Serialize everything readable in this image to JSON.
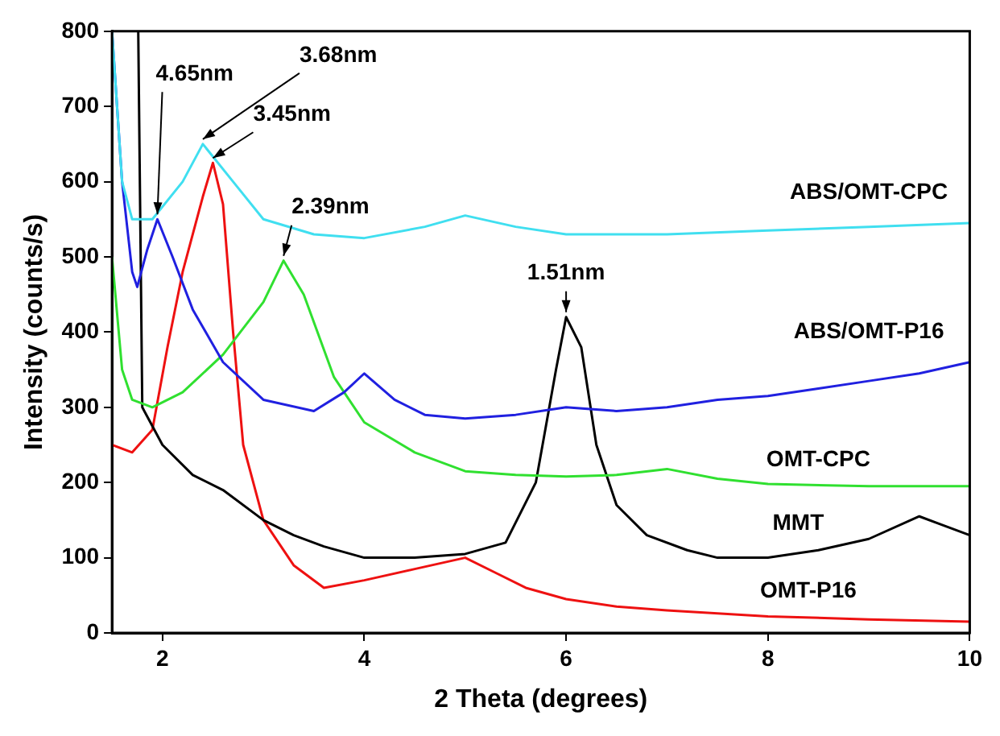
{
  "chart_data": {
    "type": "line",
    "xlabel": "2 Theta (degrees)",
    "ylabel": "Intensity (counts/s)",
    "xlim": [
      1.5,
      10
    ],
    "ylim": [
      0,
      800
    ],
    "xticks": [
      2,
      4,
      6,
      8,
      10
    ],
    "yticks": [
      0,
      100,
      200,
      300,
      400,
      500,
      600,
      700,
      800
    ],
    "grid": false,
    "legend": false,
    "marker": "none",
    "line_style": "solid",
    "series": [
      {
        "name": "ABS/OMT-CPC",
        "color": "#40dff0",
        "x": [
          1.5,
          1.6,
          1.7,
          1.9,
          2.2,
          2.4,
          2.7,
          3.0,
          3.5,
          4.0,
          4.6,
          5.0,
          5.5,
          6.0,
          7.0,
          8.0,
          9.0,
          10.0
        ],
        "values": [
          800,
          600,
          550,
          550,
          600,
          650,
          600,
          550,
          530,
          525,
          540,
          555,
          540,
          530,
          530,
          535,
          540,
          545
        ]
      },
      {
        "name": "ABS/OMT-P16",
        "color": "#2020e0",
        "x": [
          1.5,
          1.6,
          1.7,
          1.75,
          1.85,
          1.95,
          2.1,
          2.3,
          2.6,
          3.0,
          3.5,
          3.8,
          4.0,
          4.3,
          4.6,
          5.0,
          5.5,
          6.0,
          6.5,
          7.0,
          7.5,
          8.0,
          8.5,
          9.0,
          9.5,
          10.0
        ],
        "values": [
          800,
          600,
          480,
          460,
          510,
          550,
          500,
          430,
          360,
          310,
          295,
          320,
          345,
          310,
          290,
          285,
          290,
          300,
          295,
          300,
          310,
          315,
          325,
          335,
          345,
          360
        ]
      },
      {
        "name": "OMT-CPC",
        "color": "#30e030",
        "x": [
          1.5,
          1.6,
          1.7,
          1.9,
          2.2,
          2.6,
          3.0,
          3.2,
          3.4,
          3.7,
          4.0,
          4.5,
          5.0,
          5.5,
          6.0,
          6.5,
          7.0,
          7.5,
          8.0,
          9.0,
          10.0
        ],
        "values": [
          500,
          350,
          310,
          300,
          320,
          370,
          440,
          495,
          450,
          340,
          280,
          240,
          215,
          210,
          208,
          210,
          218,
          205,
          198,
          195,
          195
        ]
      },
      {
        "name": "MMT",
        "color": "#000000",
        "x": [
          1.76,
          1.8,
          2.0,
          2.3,
          2.6,
          3.0,
          3.3,
          3.6,
          4.0,
          4.5,
          5.0,
          5.4,
          5.7,
          5.9,
          6.0,
          6.15,
          6.3,
          6.5,
          6.8,
          7.2,
          7.5,
          8.0,
          8.5,
          9.0,
          9.5,
          9.7,
          10.0
        ],
        "values": [
          800,
          300,
          250,
          210,
          190,
          150,
          130,
          115,
          100,
          100,
          105,
          120,
          200,
          350,
          420,
          380,
          250,
          170,
          130,
          110,
          100,
          100,
          110,
          125,
          155,
          145,
          130
        ]
      },
      {
        "name": "OMT-P16",
        "color": "#ee1111",
        "x": [
          1.5,
          1.7,
          1.9,
          2.05,
          2.2,
          2.4,
          2.5,
          2.6,
          2.7,
          2.8,
          3.0,
          3.3,
          3.6,
          4.0,
          4.5,
          5.0,
          5.3,
          5.6,
          6.0,
          6.5,
          7.0,
          8.0,
          9.0,
          10.0
        ],
        "values": [
          250,
          240,
          270,
          380,
          480,
          580,
          625,
          570,
          400,
          250,
          150,
          90,
          60,
          70,
          85,
          100,
          80,
          60,
          45,
          35,
          30,
          22,
          18,
          15
        ]
      }
    ],
    "annotations": [
      {
        "text": "4.65nm",
        "x": 1.95,
        "y": 550
      },
      {
        "text": "3.68nm",
        "x": 2.4,
        "y": 650
      },
      {
        "text": "3.45nm",
        "x": 2.5,
        "y": 625
      },
      {
        "text": "2.39nm",
        "x": 3.2,
        "y": 495
      },
      {
        "text": "1.51nm",
        "x": 6.0,
        "y": 420
      }
    ]
  }
}
